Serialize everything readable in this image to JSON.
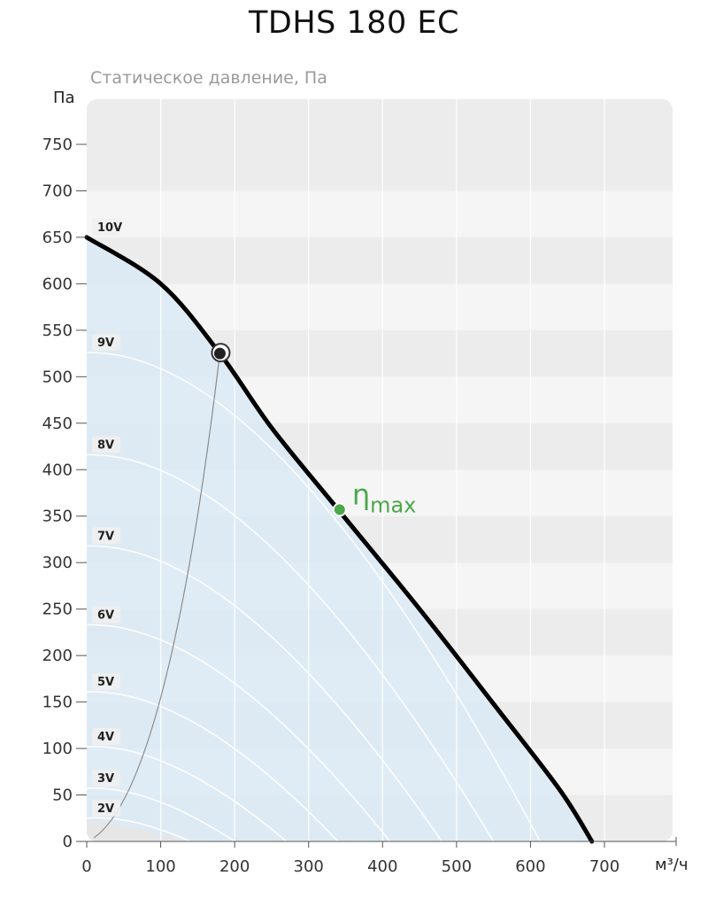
{
  "chart_data": {
    "type": "line",
    "title": "TDHS 180 EC",
    "subtitle": "Статическое давление, Па",
    "ylabel": "Па",
    "xlabel": "м³/ч",
    "xlim": [
      0,
      800
    ],
    "ylim": [
      0,
      800
    ],
    "x_ticks": [
      0,
      100,
      200,
      300,
      400,
      500,
      600,
      700
    ],
    "y_ticks": [
      0,
      50,
      100,
      150,
      200,
      250,
      300,
      350,
      400,
      450,
      500,
      550,
      600,
      650,
      700,
      750
    ],
    "grid": true,
    "series": [
      {
        "name": "10V",
        "x": [
          0,
          100,
          180,
          250,
          340,
          450,
          550,
          640,
          683
        ],
        "y": [
          650,
          600,
          525,
          445,
          357,
          250,
          148,
          55,
          0
        ]
      },
      {
        "name": "9V",
        "x": [
          0,
          613
        ],
        "y": [
          526,
          0
        ]
      },
      {
        "name": "8V",
        "x": [
          0,
          550
        ],
        "y": [
          416,
          0
        ]
      },
      {
        "name": "7V",
        "x": [
          0,
          480
        ],
        "y": [
          318,
          0
        ]
      },
      {
        "name": "6V",
        "x": [
          0,
          410
        ],
        "y": [
          233,
          0
        ]
      },
      {
        "name": "5V",
        "x": [
          0,
          340
        ],
        "y": [
          161,
          0
        ]
      },
      {
        "name": "4V",
        "x": [
          0,
          270
        ],
        "y": [
          102,
          0
        ]
      },
      {
        "name": "3V",
        "x": [
          0,
          200
        ],
        "y": [
          57,
          0
        ]
      },
      {
        "name": "2V",
        "x": [
          0,
          140
        ],
        "y": [
          25,
          0
        ]
      }
    ],
    "operating_point": {
      "x": 180,
      "y": 525
    },
    "eta_max_point": {
      "x": 342,
      "y": 357,
      "label_main": "η",
      "label_sub": "max"
    }
  },
  "colors": {
    "band_dark": "#ececec",
    "band_light": "#f5f5f5",
    "fill_area": "#dceaf5",
    "main_curve": "#000000",
    "sub_curves": "#ffffff",
    "system_curve": "#8a8a8a",
    "eta_point": "#4aa84a",
    "grid": "#ffffff"
  }
}
